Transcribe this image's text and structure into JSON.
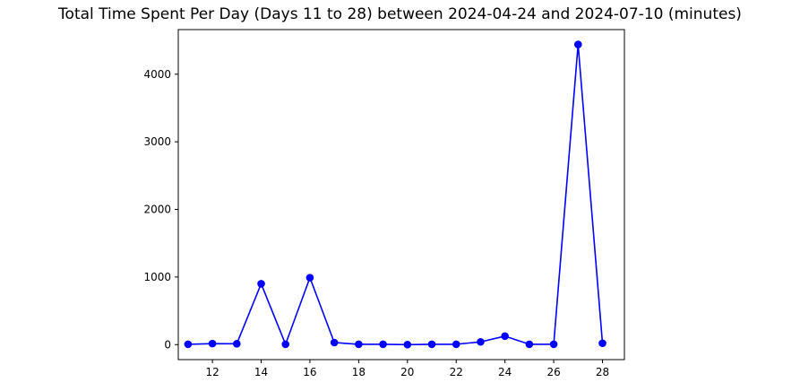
{
  "chart_data": {
    "type": "line",
    "title": "Total Time Spent Per Day (Days 11 to 28) between 2024-04-24 and 2024-07-10 (minutes)",
    "xlabel": "",
    "ylabel": "",
    "x": [
      11,
      12,
      13,
      14,
      15,
      16,
      17,
      18,
      19,
      20,
      21,
      22,
      23,
      24,
      25,
      26,
      27,
      28
    ],
    "series": [
      {
        "values": [
          5,
          15,
          12,
          900,
          5,
          990,
          30,
          5,
          5,
          0,
          5,
          5,
          40,
          125,
          5,
          5,
          4440,
          20
        ],
        "color": "#0000ff",
        "marker": "circle"
      }
    ],
    "xlim": [
      10.6,
      28.9
    ],
    "ylim": [
      -222,
      4660
    ],
    "xticks": [
      12,
      14,
      16,
      18,
      20,
      22,
      24,
      26,
      28
    ],
    "yticks": [
      0,
      1000,
      2000,
      3000,
      4000
    ],
    "grid": false,
    "legend": "none"
  }
}
